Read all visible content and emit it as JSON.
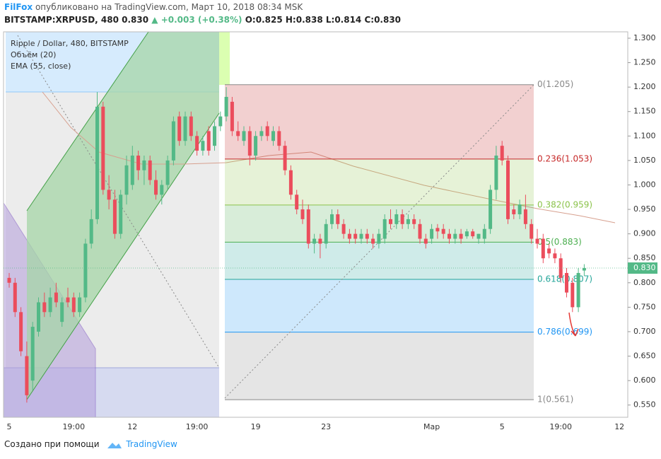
{
  "chart_data": {
    "type": "candlestick",
    "header": {
      "author": "FilFox",
      "published": "опубликовано на TradingView.com, Март 10, 2018 08:34 MSK"
    },
    "quote": {
      "symbol": "BITSTAMP:XRPUSD, 480",
      "last": "0.830",
      "change": "▲ +0.003 (+0.38%)",
      "ohlc": [
        "O:0.825",
        "H:0.838",
        "L:0.814",
        "C:0.830"
      ]
    },
    "indicators": [
      "Объём (20)",
      "EMA (55, close)"
    ],
    "footer": {
      "text": "Создано при помощи",
      "brand": "TradingView"
    },
    "categories": [
      "5",
      null,
      null,
      null,
      null,
      null,
      null,
      null,
      null,
      null,
      null,
      "19:00",
      null,
      null,
      null,
      null,
      null,
      null,
      null,
      null,
      null,
      "12",
      null,
      null,
      null,
      null,
      null,
      null,
      null,
      null,
      null,
      null,
      "19:00",
      null,
      null,
      null,
      null,
      null,
      null,
      null,
      null,
      null,
      "19",
      null,
      null,
      null,
      null,
      null,
      null,
      null,
      null,
      null,
      null,
      null,
      "23",
      null,
      null,
      null,
      null,
      null,
      null,
      null,
      null,
      null,
      null,
      null,
      null,
      null,
      null,
      null,
      null,
      null,
      "Мар",
      null,
      null,
      null,
      null,
      null,
      null,
      null,
      null,
      null,
      null,
      null,
      "5",
      null,
      null,
      null,
      null,
      null,
      null,
      null,
      null,
      null,
      "19:00",
      null,
      null,
      null,
      null,
      null,
      null,
      null,
      null,
      null,
      "12"
    ],
    "series": [
      {
        "name": "Ripple / Dollar, 480, BITSTAMP",
        "up_color": "#53b987",
        "down_color": "#eb4d5c",
        "open": [
          0.81,
          0.8,
          0.74,
          0.65,
          0.6,
          0.7,
          0.76,
          0.74,
          0.78,
          0.72,
          0.77,
          0.77,
          0.74,
          0.77,
          0.88,
          0.93,
          1.16,
          0.99,
          0.97,
          0.9,
          0.98,
          1.0,
          1.06,
          1.03,
          1.05,
          1.01,
          0.98,
          1.0,
          1.05,
          1.14,
          1.09,
          1.14,
          1.1,
          1.07,
          1.11,
          1.08,
          1.12,
          1.14,
          1.17,
          1.11,
          1.09,
          1.11,
          1.06,
          1.1,
          1.12,
          1.09,
          1.11,
          1.08,
          1.03,
          0.98,
          0.95,
          0.95,
          0.88,
          0.89,
          0.88,
          0.92,
          0.94,
          0.92,
          0.9,
          0.9,
          0.89,
          0.9,
          0.89,
          0.88,
          0.89,
          0.93,
          0.92,
          0.94,
          0.92,
          0.93,
          0.92,
          0.89,
          0.89,
          0.912,
          0.91,
          0.9,
          0.89,
          0.9,
          0.895,
          0.905,
          0.89,
          0.89,
          0.91,
          0.99,
          1.08,
          1.05,
          0.95,
          0.94,
          0.95,
          0.92,
          0.89,
          0.89,
          0.87,
          0.86,
          0.85,
          0.82,
          0.8,
          0.75,
          0.825,
          null,
          null,
          null,
          null,
          null,
          null
        ],
        "high": [
          0.82,
          0.81,
          0.75,
          0.68,
          0.72,
          0.77,
          0.78,
          0.79,
          0.8,
          0.77,
          0.79,
          0.78,
          0.78,
          0.89,
          0.95,
          1.19,
          1.17,
          1.02,
          0.99,
          0.99,
          1.06,
          1.08,
          1.07,
          1.06,
          1.06,
          1.03,
          1.01,
          1.06,
          1.14,
          1.15,
          1.15,
          1.15,
          1.11,
          1.1,
          1.12,
          1.13,
          1.15,
          1.2,
          1.18,
          1.13,
          1.12,
          1.12,
          1.11,
          1.12,
          1.13,
          1.12,
          1.12,
          1.09,
          1.04,
          0.99,
          0.97,
          0.96,
          0.9,
          0.9,
          0.93,
          0.95,
          0.95,
          0.93,
          0.91,
          0.91,
          0.91,
          0.91,
          0.9,
          0.91,
          0.94,
          0.95,
          0.95,
          0.95,
          0.94,
          0.94,
          0.93,
          0.9,
          0.92,
          0.92,
          0.92,
          0.91,
          0.91,
          0.91,
          0.91,
          0.91,
          0.9,
          0.92,
          1.0,
          1.08,
          1.09,
          1.06,
          0.96,
          0.97,
          0.98,
          0.93,
          0.91,
          0.9,
          0.88,
          0.87,
          0.86,
          0.83,
          0.81,
          0.83,
          0.838,
          null,
          null,
          null,
          null,
          null,
          null
        ],
        "low": [
          0.79,
          0.73,
          0.65,
          0.555,
          0.58,
          0.69,
          0.73,
          0.73,
          0.75,
          0.71,
          0.75,
          0.73,
          0.73,
          0.76,
          0.87,
          0.92,
          0.98,
          0.95,
          0.89,
          0.89,
          0.96,
          0.99,
          1.01,
          1.0,
          1.0,
          0.97,
          0.96,
          0.99,
          1.04,
          1.08,
          1.08,
          1.09,
          1.06,
          1.06,
          1.06,
          1.07,
          1.11,
          1.13,
          1.1,
          1.09,
          1.08,
          1.04,
          1.05,
          1.09,
          1.09,
          1.08,
          1.07,
          1.02,
          0.97,
          0.94,
          0.92,
          0.87,
          0.86,
          0.85,
          0.87,
          0.91,
          0.91,
          0.89,
          0.88,
          0.88,
          0.88,
          0.88,
          0.87,
          0.87,
          0.88,
          0.91,
          0.91,
          0.91,
          0.91,
          0.91,
          0.88,
          0.87,
          0.88,
          0.89,
          0.89,
          0.88,
          0.88,
          0.88,
          0.89,
          0.89,
          0.88,
          0.88,
          0.9,
          0.97,
          1.04,
          0.92,
          0.93,
          0.93,
          0.91,
          0.88,
          0.87,
          0.84,
          0.85,
          0.84,
          0.8,
          0.77,
          0.74,
          0.74,
          0.814,
          null,
          null,
          null,
          null,
          null,
          null
        ],
        "close": [
          0.8,
          0.74,
          0.66,
          0.57,
          0.71,
          0.76,
          0.74,
          0.77,
          0.76,
          0.76,
          0.76,
          0.74,
          0.77,
          0.88,
          0.93,
          1.16,
          0.99,
          0.97,
          0.9,
          0.98,
          1.04,
          1.06,
          1.03,
          1.05,
          1.01,
          0.98,
          1.0,
          1.05,
          1.13,
          1.09,
          1.14,
          1.1,
          1.07,
          1.09,
          1.07,
          1.12,
          1.14,
          1.18,
          1.11,
          1.1,
          1.11,
          1.06,
          1.1,
          1.11,
          1.1,
          1.11,
          1.08,
          1.03,
          0.98,
          0.95,
          0.93,
          0.88,
          0.89,
          0.88,
          0.92,
          0.94,
          0.92,
          0.9,
          0.89,
          0.89,
          0.9,
          0.89,
          0.88,
          0.9,
          0.93,
          0.92,
          0.94,
          0.92,
          0.93,
          0.92,
          0.89,
          0.88,
          0.91,
          0.905,
          0.9,
          0.89,
          0.9,
          0.89,
          0.905,
          0.895,
          0.9,
          0.91,
          0.99,
          1.06,
          1.05,
          0.93,
          0.94,
          0.96,
          0.92,
          0.89,
          0.88,
          0.85,
          0.86,
          0.85,
          0.81,
          0.78,
          0.75,
          0.82,
          0.83,
          null,
          null,
          null,
          null,
          null,
          null
        ]
      }
    ],
    "fibonacci": [
      {
        "label": "0(1.205)",
        "value": 1.205,
        "color": "#888888"
      },
      {
        "label": "0.236(1.053)",
        "value": 1.053,
        "color": "#c62828"
      },
      {
        "label": "0.382(0.959)",
        "value": 0.959,
        "color": "#8bc34a"
      },
      {
        "label": "0.5(0.883)",
        "value": 0.883,
        "color": "#4caf50"
      },
      {
        "label": "0.618(0.807)",
        "value": 0.807,
        "color": "#26a69a"
      },
      {
        "label": "0.786(0.699)",
        "value": 0.699,
        "color": "#2196f3"
      },
      {
        "label": "1(0.561)",
        "value": 0.561,
        "color": "#888888"
      }
    ],
    "last_price": {
      "value": 0.83,
      "label": "0.830",
      "color": "#53b987"
    },
    "ylim": [
      0.525,
      1.313
    ],
    "yticks": [
      {
        "value": 1.3,
        "label": "1.300"
      },
      {
        "value": 1.25,
        "label": "1.250"
      },
      {
        "value": 1.2,
        "label": "1.200"
      },
      {
        "value": 1.15,
        "label": "1.150"
      },
      {
        "value": 1.1,
        "label": "1.100"
      },
      {
        "value": 1.05,
        "label": "1.050"
      },
      {
        "value": 1,
        "label": "1.000"
      },
      {
        "value": 0.95,
        "label": "0.950"
      },
      {
        "value": 0.9,
        "label": "0.900"
      },
      {
        "value": 0.85,
        "label": "0.850"
      },
      {
        "value": 0.8,
        "label": "0.800"
      },
      {
        "value": 0.75,
        "label": "0.750"
      },
      {
        "value": 0.7,
        "label": "0.700"
      },
      {
        "value": 0.65,
        "label": "0.650"
      },
      {
        "value": 0.6,
        "label": "0.600"
      },
      {
        "value": 0.55,
        "label": "0.550"
      }
    ],
    "grid": false
  }
}
